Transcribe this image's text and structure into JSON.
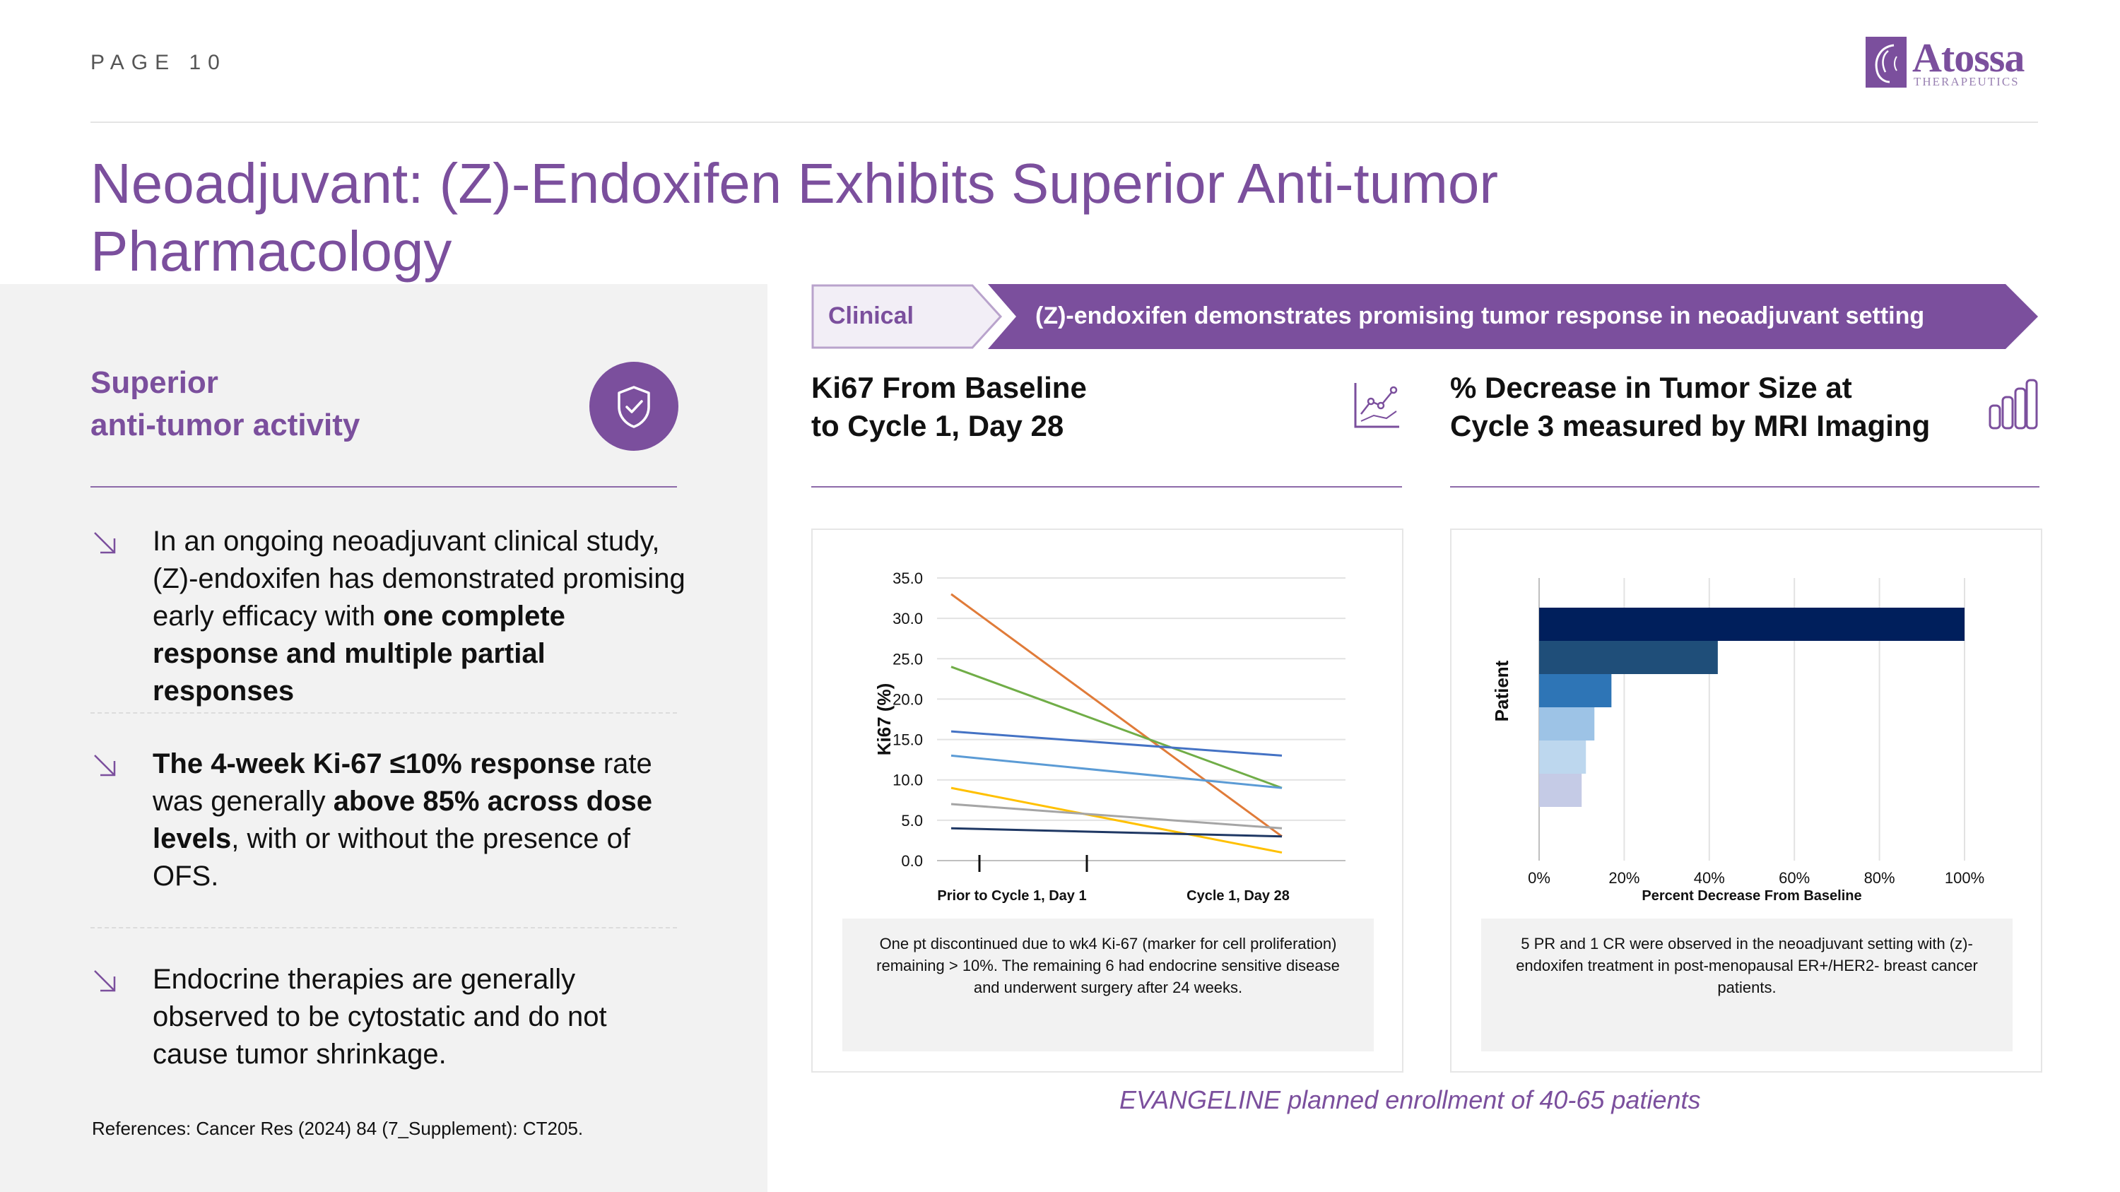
{
  "page": {
    "label": "PAGE 10"
  },
  "logo": {
    "name": "Atossa",
    "subtitle": "THERAPEUTICS"
  },
  "title": "Neoadjuvant: (Z)-Endoxifen Exhibits Superior Anti-tumor Pharmacology",
  "left": {
    "heading_line1": "Superior",
    "heading_line2": "anti-tumor activity",
    "bullets": [
      {
        "parts": [
          {
            "t": "In an ongoing neoadjuvant clinical study, (Z)-endoxifen has demonstrated promising early efficacy with ",
            "b": false
          },
          {
            "t": "one complete response and multiple partial responses",
            "b": true
          }
        ]
      },
      {
        "parts": [
          {
            "t": "The 4-week Ki-67 ≤10% response",
            "b": true
          },
          {
            "t": " rate was generally ",
            "b": false
          },
          {
            "t": "above 85% across dose levels",
            "b": true
          },
          {
            "t": ", with or without the presence of OFS.",
            "b": false
          }
        ]
      },
      {
        "parts": [
          {
            "t": "Endocrine therapies are generally observed to be cytostatic and do not cause tumor shrinkage.",
            "b": false
          }
        ]
      }
    ],
    "references": "References: Cancer Res (2024) 84 (7_Supplement): CT205."
  },
  "banner": {
    "clinical": "Clinical",
    "message": "(Z)-endoxifen demonstrates promising tumor response in neoadjuvant setting"
  },
  "panels": {
    "ki67": {
      "title_line1": "Ki67 From Baseline",
      "title_line2": "to Cycle 1, Day 28",
      "note": "One pt discontinued due to wk4 Ki-67 (marker for cell proliferation) remaining > 10%. The remaining 6 had endocrine sensitive disease and underwent surgery after 24 weeks."
    },
    "tumor": {
      "title_line1": "% Decrease in Tumor Size at",
      "title_line2": "Cycle 3 measured by MRI Imaging",
      "note": "5 PR and 1 CR were observed in the neoadjuvant setting with (z)-endoxifen treatment in post-menopausal ER+/HER2- breast cancer patients."
    }
  },
  "footer_note": "EVANGELINE planned enrollment of 40-65 patients",
  "chart_data": [
    {
      "type": "line",
      "ylabel": "Ki67 (%)",
      "xlabel": "",
      "ylim": [
        0,
        35
      ],
      "yticks": [
        "35.0",
        "30.0",
        "25.0",
        "20.0",
        "15.0",
        "10.0",
        "5.0",
        "0.0"
      ],
      "x": [
        "Prior to Cycle 1, Day 1",
        "Cycle 1, Day 28"
      ],
      "grid": true,
      "series": [
        {
          "color": "#e07b39",
          "values": [
            33,
            3
          ]
        },
        {
          "color": "#70ad47",
          "values": [
            24,
            9
          ]
        },
        {
          "color": "#4472c4",
          "values": [
            16,
            13
          ]
        },
        {
          "color": "#5b9bd5",
          "values": [
            13,
            9
          ]
        },
        {
          "color": "#ffc000",
          "values": [
            9,
            1
          ]
        },
        {
          "color": "#a5a5a5",
          "values": [
            7,
            4
          ]
        },
        {
          "color": "#1f3864",
          "values": [
            4,
            3
          ]
        }
      ]
    },
    {
      "type": "bar",
      "orientation": "horizontal",
      "xlabel": "Percent Decrease From Baseline",
      "ylabel": "Patient",
      "xlim": [
        0,
        100
      ],
      "xticks": [
        "0%",
        "20%",
        "40%",
        "60%",
        "80%",
        "100%"
      ],
      "grid": true,
      "values": [
        100,
        42,
        17,
        13,
        11,
        10
      ],
      "colors": [
        "#001f5c",
        "#1f4e79",
        "#2e75b6",
        "#9dc3e6",
        "#bdd7ee",
        "#c5cbe6"
      ]
    }
  ],
  "colors": {
    "brand": "#7b4f9d",
    "panel": "#f2f2f2"
  }
}
